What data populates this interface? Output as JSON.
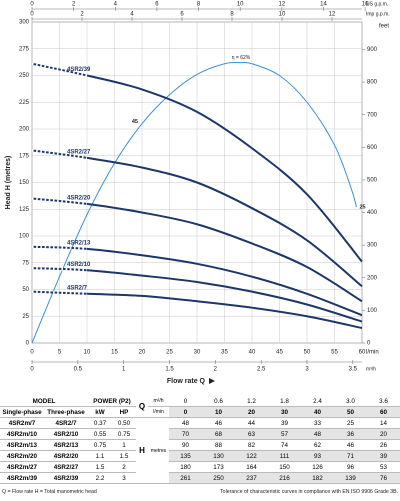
{
  "chart_data": {
    "type": "line",
    "y_label": "Head H (metres)",
    "y2_label": "feet",
    "x_label": "Flow rate Q",
    "x_unit": "l/min",
    "xlim": [
      0,
      60
    ],
    "xticks": [
      0,
      5,
      10,
      15,
      20,
      25,
      30,
      35,
      40,
      45,
      50,
      55,
      60
    ],
    "ylim": [
      0,
      300
    ],
    "yticks": [
      0,
      25,
      50,
      75,
      100,
      125,
      150,
      175,
      200,
      225,
      250,
      275,
      300
    ],
    "y2lim": [
      0,
      984.25
    ],
    "y2ticks": [
      0,
      100,
      200,
      300,
      400,
      500,
      600,
      700,
      800,
      900
    ],
    "x_m3h": {
      "label": "m³/h",
      "lim": [
        0,
        3.6
      ],
      "ticks": [
        0,
        0.5,
        1,
        1.5,
        2,
        2.5,
        3,
        3.5
      ]
    },
    "x_us": {
      "label": "US g.p.m.",
      "lim": [
        0,
        15.85
      ],
      "ticks": [
        0,
        2,
        4,
        6,
        8,
        10,
        12,
        14,
        16
      ]
    },
    "x_imp": {
      "label": "Imp g.p.m.",
      "lim": [
        0,
        13.2
      ],
      "ticks": [
        0,
        2,
        4,
        6,
        8,
        10,
        12
      ]
    },
    "grid": true,
    "x": [
      0,
      10,
      20,
      30,
      40,
      50,
      60
    ],
    "series": [
      {
        "name": "4SR2/39",
        "color": "#1c3768",
        "values": [
          261,
          250,
          237,
          216,
          182,
          139,
          76
        ]
      },
      {
        "name": "4SR2/27",
        "color": "#1c3768",
        "values": [
          180,
          173,
          164,
          150,
          126,
          96,
          53
        ]
      },
      {
        "name": "4SR2/20",
        "color": "#1c3768",
        "values": [
          135,
          130,
          122,
          111,
          93,
          71,
          39
        ]
      },
      {
        "name": "4SR2/13",
        "color": "#1c3768",
        "values": [
          90,
          88,
          82,
          74,
          62,
          46,
          26
        ]
      },
      {
        "name": "4SR2/10",
        "color": "#1c3768",
        "values": [
          70,
          68,
          63,
          57,
          48,
          36,
          20
        ]
      },
      {
        "name": "4SR2/7",
        "color": "#1c3768",
        "values": [
          48,
          46,
          44,
          39,
          33,
          25,
          14
        ]
      }
    ],
    "efficiency": {
      "color": "#3b8fd4",
      "x": [
        0,
        5,
        10,
        15,
        20,
        25,
        30,
        35,
        38,
        40,
        45,
        50,
        55,
        58,
        59
      ],
      "values": [
        0,
        62,
        120,
        168,
        205,
        232,
        251,
        261,
        262,
        261,
        250,
        225,
        185,
        145,
        127
      ],
      "labels": [
        "η = 62%",
        "45",
        "25"
      ]
    }
  },
  "table": {
    "model": "MODEL",
    "power": "POWER (P2)",
    "q": "Q",
    "h": "H",
    "metres": "metres",
    "single_phase": "Single-phase",
    "three_phase": "Three-phase",
    "kw": "kW",
    "hp": "HP",
    "m3h": "m³/h",
    "lmin": "l/min",
    "q_m3h": [
      "0",
      "0.6",
      "1.2",
      "1.8",
      "2.4",
      "3.0",
      "3.6"
    ],
    "q_lmin": [
      "0",
      "10",
      "20",
      "30",
      "40",
      "50",
      "60"
    ],
    "rows": [
      [
        "4SR2m/7",
        "4SR2/7",
        "0.37",
        "0.50",
        "48",
        "46",
        "44",
        "39",
        "33",
        "25",
        "14"
      ],
      [
        "4SR2m/10",
        "4SR2/10",
        "0.55",
        "0.75",
        "70",
        "68",
        "63",
        "57",
        "48",
        "36",
        "20"
      ],
      [
        "4SR2m/13",
        "4SR2/13",
        "0.75",
        "1",
        "90",
        "88",
        "82",
        "74",
        "62",
        "46",
        "26"
      ],
      [
        "4SR2m/20",
        "4SR2/20",
        "1.1",
        "1.5",
        "135",
        "130",
        "122",
        "111",
        "93",
        "71",
        "39"
      ],
      [
        "4SR2m/27",
        "4SR2/27",
        "1.5",
        "2",
        "180",
        "173",
        "164",
        "150",
        "126",
        "96",
        "53"
      ],
      [
        "4SR2m/39",
        "4SR2/39",
        "2.2",
        "3",
        "261",
        "250",
        "237",
        "216",
        "182",
        "139",
        "76"
      ]
    ]
  },
  "footer": {
    "left": "Q = Flow rate   H = Total manometric head",
    "right": "Tolerance of characteristic curves in compliance with EN ISO 9906 Grade 3B."
  }
}
